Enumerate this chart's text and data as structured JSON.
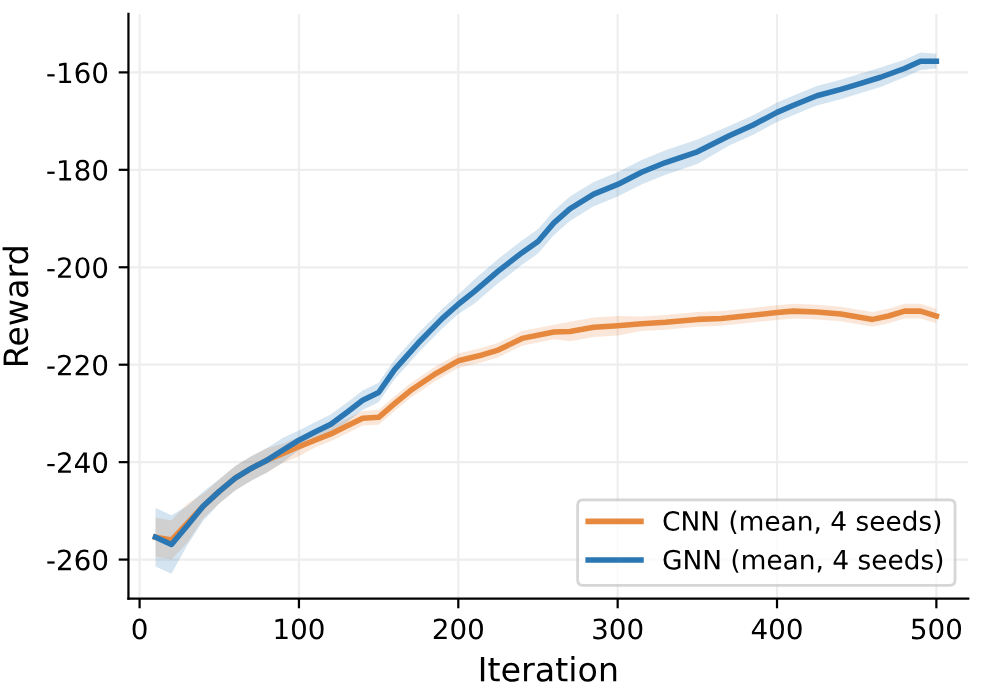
{
  "chart_data": {
    "type": "line",
    "xlabel": "Iteration",
    "ylabel": "Reward",
    "xlim": [
      -7,
      520
    ],
    "ylim": [
      -268,
      -148
    ],
    "xticks": [
      0,
      100,
      200,
      300,
      400,
      500
    ],
    "yticks": [
      -260,
      -240,
      -220,
      -200,
      -180,
      -160
    ],
    "grid": true,
    "legend": "bottom right",
    "series": [
      {
        "name": "CNN (mean, 4 seeds)",
        "color": "#e6893f",
        "x": [
          10,
          20,
          30,
          40,
          50,
          60,
          70,
          80,
          90,
          100,
          110,
          120,
          130,
          140,
          150,
          160,
          170,
          185,
          200,
          215,
          225,
          240,
          260,
          270,
          285,
          300,
          315,
          330,
          350,
          365,
          380,
          400,
          410,
          425,
          440,
          460,
          470,
          480,
          490,
          500
        ],
        "values": [
          -255.4,
          -256,
          -252.5,
          -249,
          -246,
          -243.3,
          -241.3,
          -239.6,
          -238.2,
          -236.8,
          -235.5,
          -234.2,
          -232.6,
          -231,
          -230.8,
          -228,
          -225.3,
          -222,
          -219.2,
          -218,
          -217,
          -214.6,
          -213.3,
          -213.2,
          -212.3,
          -212,
          -211.6,
          -211.3,
          -210.7,
          -210.5,
          -210,
          -209.3,
          -209,
          -209.2,
          -209.6,
          -210.7,
          -210,
          -209,
          -209,
          -210
        ],
        "lower": [
          -259.4,
          -260,
          -256.5,
          -251.5,
          -248.5,
          -245.8,
          -243.8,
          -242.1,
          -240.2,
          -238.8,
          -237,
          -235.7,
          -234.1,
          -232.5,
          -232.3,
          -229.5,
          -226.8,
          -223.5,
          -220.7,
          -219.5,
          -218.5,
          -216.1,
          -214.8,
          -215.2,
          -214.3,
          -214,
          -213.1,
          -212.8,
          -212.2,
          -212,
          -211.5,
          -210.8,
          -210.5,
          -210.7,
          -211.1,
          -212.2,
          -211.5,
          -210.5,
          -210.5,
          -211.5
        ],
        "upper": [
          -251.4,
          -252,
          -248.5,
          -246.5,
          -243.5,
          -240.8,
          -238.8,
          -237.1,
          -236.2,
          -234.8,
          -234,
          -232.7,
          -231.1,
          -229.5,
          -229.3,
          -226.5,
          -223.8,
          -220.5,
          -217.7,
          -216.5,
          -215.5,
          -213.1,
          -211.8,
          -211.2,
          -210.3,
          -210,
          -210.1,
          -209.8,
          -209.2,
          -209,
          -208.5,
          -207.8,
          -207.5,
          -207.7,
          -208.1,
          -209.2,
          -208.5,
          -207.5,
          -207.5,
          -208.5
        ]
      },
      {
        "name": "GNN (mean, 4 seeds)",
        "color": "#2a77b4",
        "x": [
          10,
          20,
          30,
          40,
          50,
          60,
          70,
          80,
          90,
          100,
          110,
          120,
          130,
          140,
          150,
          160,
          175,
          190,
          200,
          210,
          225,
          240,
          250,
          260,
          270,
          285,
          300,
          315,
          330,
          350,
          370,
          385,
          400,
          410,
          425,
          440,
          450,
          465,
          480,
          490,
          500
        ],
        "values": [
          -255.4,
          -256.9,
          -253,
          -249,
          -246,
          -243.3,
          -241.3,
          -239.6,
          -237.5,
          -235.5,
          -233.8,
          -232.2,
          -229.8,
          -227.3,
          -225.7,
          -221,
          -215.5,
          -210.5,
          -207.6,
          -205,
          -200.8,
          -197,
          -194.7,
          -190.9,
          -188,
          -185,
          -183,
          -180.5,
          -178.5,
          -176.3,
          -173,
          -170.8,
          -168.2,
          -166.8,
          -164.8,
          -163.5,
          -162.5,
          -161,
          -159.2,
          -157.7,
          -157.7
        ],
        "lower": [
          -261.4,
          -262.9,
          -257,
          -252,
          -248.5,
          -245.8,
          -243.8,
          -242.1,
          -240,
          -237.5,
          -235.8,
          -234.2,
          -231.8,
          -229.3,
          -227.7,
          -223,
          -217.5,
          -212.5,
          -209.6,
          -207.5,
          -203.3,
          -199.5,
          -197.2,
          -193.4,
          -190.5,
          -187.5,
          -185.5,
          -183,
          -181,
          -178.8,
          -175,
          -172.8,
          -170.2,
          -168.8,
          -166.8,
          -165.5,
          -164.5,
          -163,
          -161,
          -159.5,
          -159.2
        ],
        "upper": [
          -249.4,
          -250.9,
          -249,
          -246,
          -243.5,
          -240.8,
          -238.8,
          -237.1,
          -235,
          -233.5,
          -231.8,
          -230.2,
          -227.8,
          -225.3,
          -223.7,
          -219,
          -213.5,
          -208.5,
          -205.6,
          -202.5,
          -198.3,
          -194.5,
          -192.2,
          -188.4,
          -185.5,
          -182.5,
          -180.5,
          -178,
          -176,
          -173.8,
          -171,
          -168.8,
          -166.2,
          -164.8,
          -162.8,
          -161.5,
          -160.5,
          -159,
          -157.4,
          -155.9,
          -156.2
        ]
      }
    ]
  }
}
